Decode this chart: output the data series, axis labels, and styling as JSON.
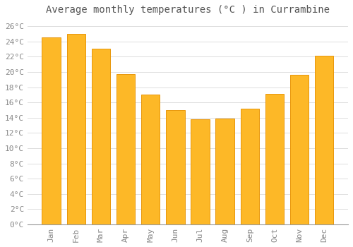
{
  "title": "Average monthly temperatures (°C ) in Currambine",
  "months": [
    "Jan",
    "Feb",
    "Mar",
    "Apr",
    "May",
    "Jun",
    "Jul",
    "Aug",
    "Sep",
    "Oct",
    "Nov",
    "Dec"
  ],
  "values": [
    24.5,
    25.0,
    23.0,
    19.7,
    17.0,
    15.0,
    13.8,
    13.9,
    15.2,
    17.1,
    19.6,
    22.1
  ],
  "bar_color": "#FDB827",
  "bar_edge_color": "#E8960A",
  "ylim": [
    0,
    27
  ],
  "yticks": [
    0,
    2,
    4,
    6,
    8,
    10,
    12,
    14,
    16,
    18,
    20,
    22,
    24,
    26
  ],
  "ytick_labels": [
    "0°C",
    "2°C",
    "4°C",
    "6°C",
    "8°C",
    "10°C",
    "12°C",
    "14°C",
    "16°C",
    "18°C",
    "20°C",
    "22°C",
    "24°C",
    "26°C"
  ],
  "background_color": "#FFFFFF",
  "grid_color": "#DDDDDD",
  "title_fontsize": 10,
  "tick_fontsize": 8,
  "bar_width": 0.75
}
